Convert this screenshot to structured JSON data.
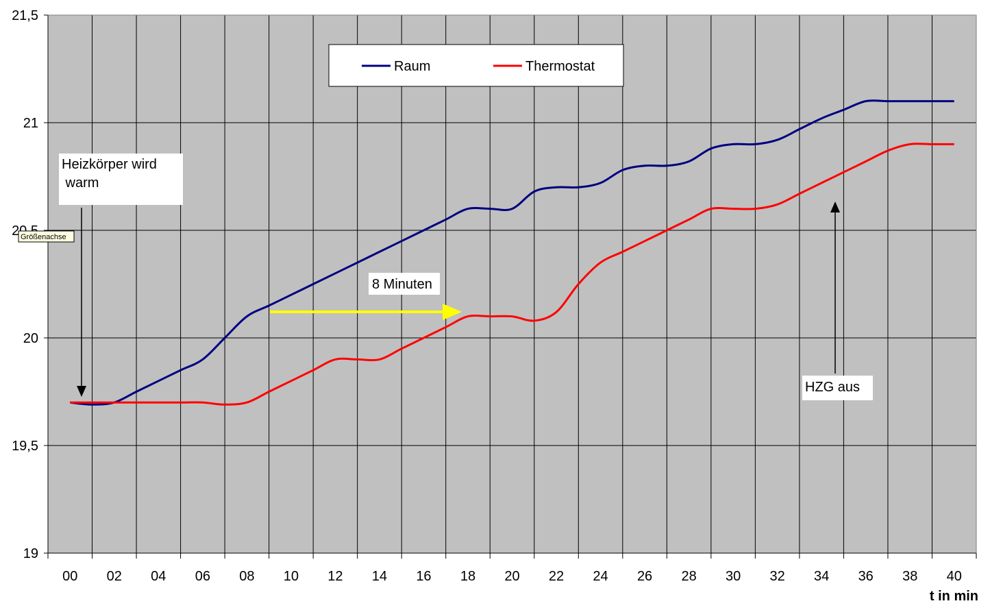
{
  "chart_data": {
    "type": "line",
    "title": "",
    "xlabel": "t in min",
    "ylabel": "",
    "xlim": [
      -1,
      41
    ],
    "ylim": [
      19,
      21.5
    ],
    "x_ticks": [
      "00",
      "02",
      "04",
      "06",
      "08",
      "10",
      "12",
      "14",
      "16",
      "18",
      "20",
      "22",
      "24",
      "26",
      "28",
      "30",
      "32",
      "34",
      "36",
      "38",
      "40"
    ],
    "y_ticks": [
      "19",
      "19,5",
      "20",
      "20,5",
      "21",
      "21,5"
    ],
    "grid": true,
    "legend_position": "top-center",
    "series": [
      {
        "name": "Raum",
        "color": "#000080",
        "x": [
          0,
          1,
          2,
          3,
          4,
          5,
          6,
          7,
          8,
          9,
          10,
          11,
          12,
          13,
          14,
          15,
          16,
          17,
          18,
          19,
          20,
          21,
          22,
          23,
          24,
          25,
          26,
          27,
          28,
          29,
          30,
          31,
          32,
          33,
          34,
          35,
          36,
          37,
          38,
          39,
          40
        ],
        "values": [
          19.7,
          19.69,
          19.7,
          19.75,
          19.8,
          19.85,
          19.9,
          20.0,
          20.1,
          20.15,
          20.2,
          20.25,
          20.3,
          20.35,
          20.4,
          20.45,
          20.5,
          20.55,
          20.6,
          20.6,
          20.6,
          20.68,
          20.7,
          20.7,
          20.72,
          20.78,
          20.8,
          20.8,
          20.82,
          20.88,
          20.9,
          20.9,
          20.92,
          20.97,
          21.02,
          21.06,
          21.1,
          21.1,
          21.1,
          21.1,
          21.1
        ]
      },
      {
        "name": "Thermostat",
        "color": "#ff0000",
        "x": [
          0,
          1,
          2,
          3,
          4,
          5,
          6,
          7,
          8,
          9,
          10,
          11,
          12,
          13,
          14,
          15,
          16,
          17,
          18,
          19,
          20,
          21,
          22,
          23,
          24,
          25,
          26,
          27,
          28,
          29,
          30,
          31,
          32,
          33,
          34,
          35,
          36,
          37,
          38,
          39,
          40
        ],
        "values": [
          19.7,
          19.7,
          19.7,
          19.7,
          19.7,
          19.7,
          19.7,
          19.69,
          19.7,
          19.75,
          19.8,
          19.85,
          19.9,
          19.9,
          19.9,
          19.95,
          20.0,
          20.05,
          20.1,
          20.1,
          20.1,
          20.08,
          20.12,
          20.25,
          20.35,
          20.4,
          20.45,
          20.5,
          20.55,
          20.6,
          20.6,
          20.6,
          20.62,
          20.67,
          20.72,
          20.77,
          20.82,
          20.87,
          20.9,
          20.9,
          20.9
        ]
      }
    ],
    "annotations": [
      {
        "text_lines": [
          "Heizkörper wird",
          " warm"
        ]
      },
      {
        "text_lines": [
          "8 Minuten"
        ]
      },
      {
        "text_lines": [
          "HZG aus"
        ]
      }
    ],
    "tooltip": "Größenachse",
    "colors": {
      "plot_bg": "#c0c0c0",
      "grid": "#000000",
      "arrow_yellow": "#ffff00"
    }
  }
}
